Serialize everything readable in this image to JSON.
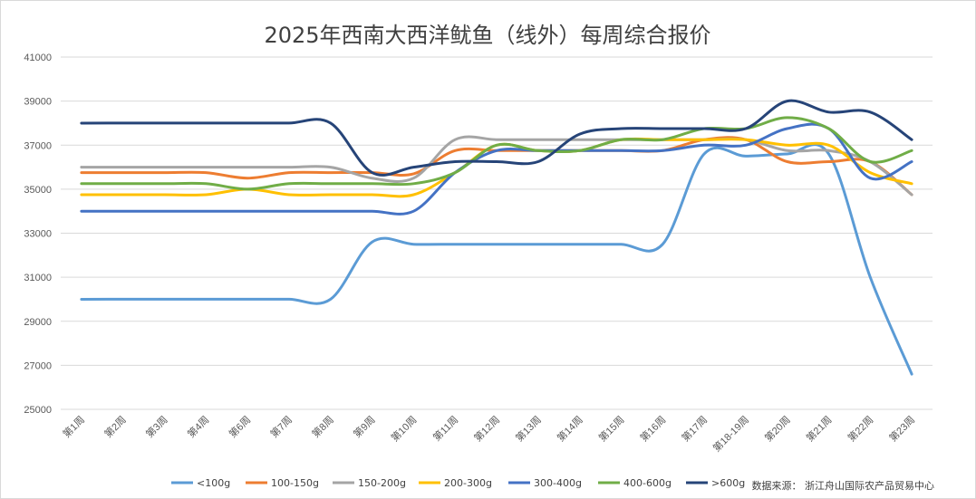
{
  "chart_data": {
    "type": "line",
    "title": "2025年西南大西洋鱿鱼（线外）每周综合报价",
    "xlabel": "",
    "ylabel": "",
    "ylim": [
      25000,
      41000
    ],
    "yticks": [
      25000,
      27000,
      29000,
      31000,
      33000,
      35000,
      37000,
      39000,
      41000
    ],
    "ytick_labels": [
      "25000",
      "27000",
      "29000",
      "31000",
      "33000",
      "35000",
      "37000",
      "39000",
      "41000"
    ],
    "grid": "horizontal",
    "legend_position": "bottom",
    "categories": [
      "第1周",
      "第2周",
      "第3周",
      "第4周",
      "第6周",
      "第7周",
      "第8周",
      "第9周",
      "第10周",
      "第11周",
      "第12周",
      "第13周",
      "第14周",
      "第15周",
      "第16周",
      "第17周",
      "第18-19周",
      "第20周",
      "第21周",
      "第22周",
      "第23周"
    ],
    "series": [
      {
        "name": "<100g",
        "color": "#5B9BD5",
        "values": [
          30000,
          30000,
          30000,
          30000,
          30000,
          30000,
          30000,
          32600,
          32500,
          32500,
          32500,
          32500,
          32500,
          32500,
          32500,
          36600,
          36500,
          36600,
          36600,
          31000,
          26600
        ]
      },
      {
        "name": "100-150g",
        "color": "#ED7D31",
        "values": [
          35750,
          35750,
          35750,
          35750,
          35500,
          35750,
          35750,
          35750,
          35700,
          36750,
          36750,
          36750,
          36750,
          36750,
          36750,
          37250,
          37250,
          36250,
          36250,
          36250,
          34750
        ]
      },
      {
        "name": "150-200g",
        "color": "#A5A5A5",
        "values": [
          36000,
          36000,
          36000,
          36000,
          36000,
          36000,
          36000,
          35500,
          35500,
          37250,
          37250,
          37250,
          37250,
          37250,
          37250,
          37250,
          37250,
          36750,
          36750,
          36250,
          34750
        ]
      },
      {
        "name": "200-300g",
        "color": "#FFC000",
        "values": [
          34750,
          34750,
          34750,
          34750,
          35000,
          34750,
          34750,
          34750,
          34750,
          35750,
          37000,
          36750,
          36750,
          37250,
          37250,
          37250,
          37250,
          37000,
          37000,
          35750,
          35250
        ]
      },
      {
        "name": "300-400g",
        "color": "#4472C4",
        "values": [
          34000,
          34000,
          34000,
          34000,
          34000,
          34000,
          34000,
          34000,
          34000,
          35750,
          36750,
          36750,
          36750,
          36750,
          36750,
          37000,
          37000,
          37750,
          37750,
          35500,
          36250
        ]
      },
      {
        "name": "400-600g",
        "color": "#70AD47",
        "values": [
          35250,
          35250,
          35250,
          35250,
          35000,
          35250,
          35250,
          35250,
          35250,
          35750,
          37000,
          36750,
          36750,
          37250,
          37250,
          37750,
          37750,
          38250,
          37750,
          36250,
          36750
        ]
      },
      {
        "name": ">600g",
        "color": "#264478",
        "values": [
          38000,
          38000,
          38000,
          38000,
          38000,
          38000,
          38000,
          35750,
          36000,
          36250,
          36250,
          36250,
          37500,
          37750,
          37750,
          37750,
          37750,
          39000,
          38500,
          38500,
          37250
        ]
      }
    ],
    "source_note": "数据来源：  浙江舟山国际农产品贸易中心"
  }
}
